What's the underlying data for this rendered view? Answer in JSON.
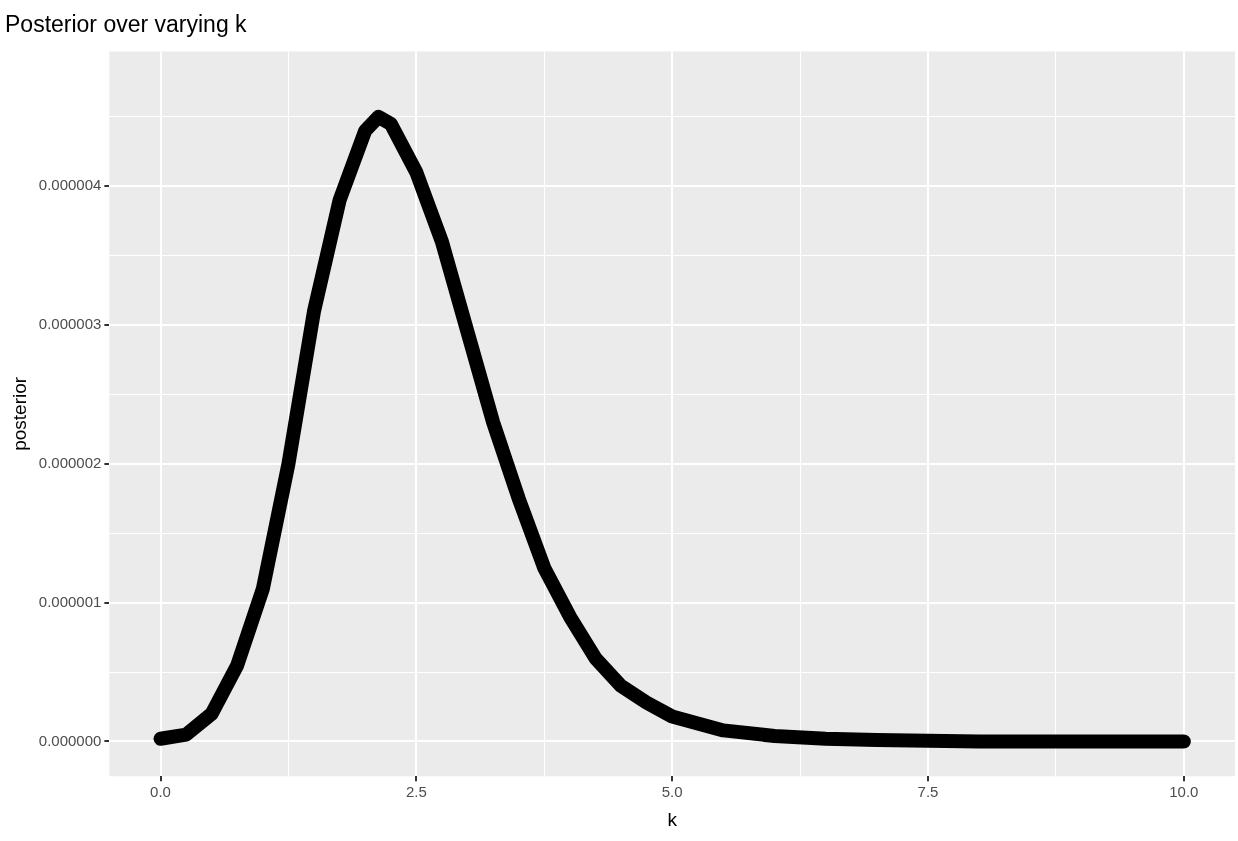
{
  "chart_data": {
    "type": "line",
    "title": "Posterior over varying k",
    "xlabel": "k",
    "ylabel": "posterior",
    "x": [
      0,
      0.25,
      0.5,
      0.75,
      1,
      1.25,
      1.5,
      1.75,
      2,
      2.13,
      2.25,
      2.5,
      2.75,
      3,
      3.25,
      3.5,
      3.75,
      4,
      4.25,
      4.5,
      4.75,
      5,
      5.5,
      6,
      6.5,
      7,
      8,
      9,
      10
    ],
    "series": [
      {
        "color": "#000000",
        "values": [
          2e-08,
          5e-08,
          2e-07,
          5.5e-07,
          1.1e-06,
          2e-06,
          3.1e-06,
          3.9e-06,
          4.4e-06,
          4.5e-06,
          4.45e-06,
          4.1e-06,
          3.6e-06,
          2.95e-06,
          2.3e-06,
          1.75e-06,
          1.25e-06,
          9e-07,
          6e-07,
          4e-07,
          2.8e-07,
          1.8e-07,
          8e-08,
          4e-08,
          2e-08,
          1e-08,
          0,
          0,
          0
        ]
      }
    ],
    "xlim": [
      -0.5,
      10.5
    ],
    "ylim": [
      -2.5e-07,
      4.97e-06
    ],
    "xticks": [
      {
        "value": 0,
        "label": "0.0"
      },
      {
        "value": 1.25,
        "label": null
      },
      {
        "value": 2.5,
        "label": "2.5"
      },
      {
        "value": 3.75,
        "label": null
      },
      {
        "value": 5,
        "label": "5.0"
      },
      {
        "value": 6.25,
        "label": null
      },
      {
        "value": 7.5,
        "label": "7.5"
      },
      {
        "value": 8.75,
        "label": null
      },
      {
        "value": 10,
        "label": "10.0"
      }
    ],
    "yticks": [
      {
        "value": 0,
        "label": "0.000000"
      },
      {
        "value": 5e-07,
        "label": null
      },
      {
        "value": 1e-06,
        "label": "0.000001"
      },
      {
        "value": 1.5e-06,
        "label": null
      },
      {
        "value": 2e-06,
        "label": "0.000002"
      },
      {
        "value": 2.5e-06,
        "label": null
      },
      {
        "value": 3e-06,
        "label": "0.000003"
      },
      {
        "value": 3.5e-06,
        "label": null
      },
      {
        "value": 4e-06,
        "label": "0.000004"
      },
      {
        "value": 4.5e-06,
        "label": null
      }
    ],
    "grid": true,
    "legend": false,
    "marker": "none",
    "line_style": "solid"
  }
}
